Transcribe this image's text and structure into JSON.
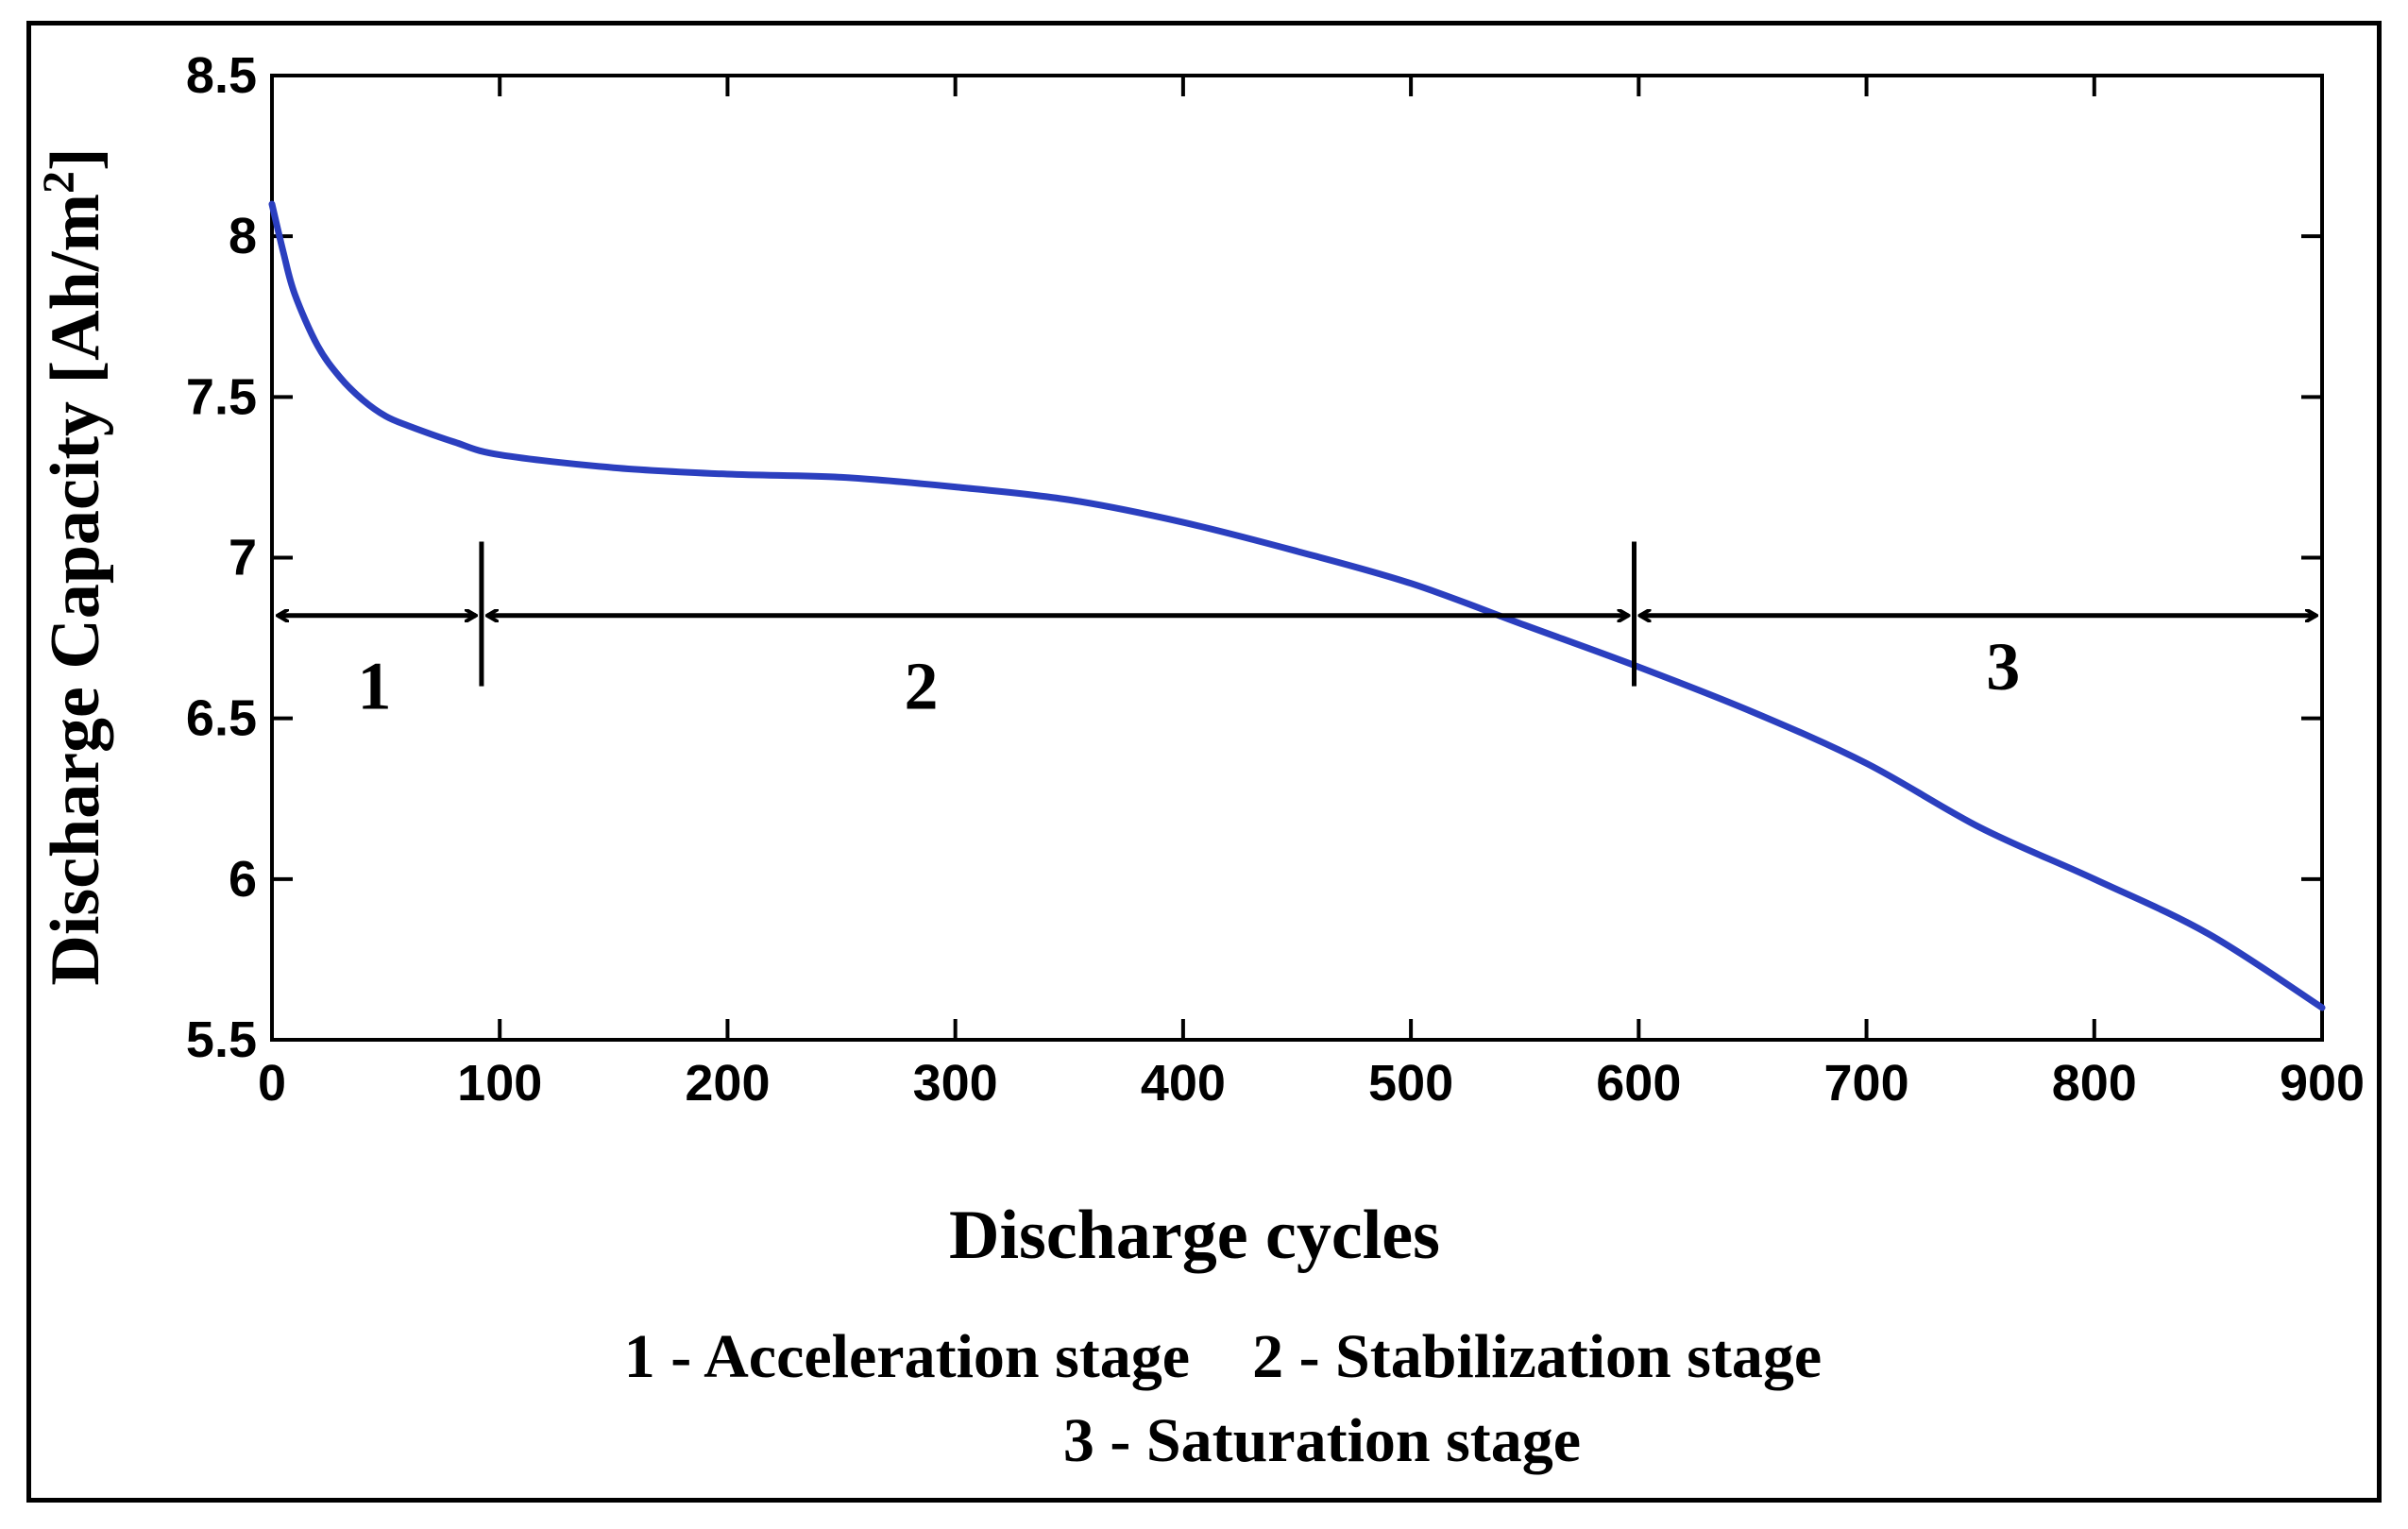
{
  "chart_data": {
    "type": "line",
    "title": "",
    "xlabel": "Discharge cycles",
    "ylabel": "Discharge Capacity [Ah/m",
    "ylabel_superscript": "2",
    "ylabel_close": "]",
    "xlim": [
      0,
      900
    ],
    "ylim": [
      5.5,
      8.5
    ],
    "grid": false,
    "xticks": [
      0,
      100,
      200,
      300,
      400,
      500,
      600,
      700,
      800,
      900
    ],
    "xtick_labels": [
      "0",
      "100",
      "200",
      "300",
      "400",
      "500",
      "600",
      "700",
      "800",
      "900"
    ],
    "yticks": [
      5.5,
      6,
      6.5,
      7,
      7.5,
      8,
      8.5
    ],
    "ytick_labels": [
      "5.5",
      "6",
      "6.5",
      "7",
      "7.5",
      "8",
      "8.5"
    ],
    "series": [
      {
        "name": "Discharge capacity",
        "color": "#2b3fbf",
        "x": [
          0,
          5,
          10,
          20,
          30,
          40,
          50,
          60,
          80,
          100,
          150,
          200,
          250,
          300,
          350,
          400,
          450,
          500,
          550,
          600,
          650,
          700,
          750,
          800,
          850,
          900
        ],
        "y": [
          8.1,
          7.95,
          7.82,
          7.66,
          7.56,
          7.49,
          7.44,
          7.41,
          7.36,
          7.32,
          7.28,
          7.26,
          7.25,
          7.22,
          7.18,
          7.11,
          7.02,
          6.92,
          6.79,
          6.66,
          6.52,
          6.36,
          6.16,
          6.0,
          5.83,
          5.6
        ]
      }
    ],
    "stages": {
      "arrow_y": 6.82,
      "boundaries": [
        0,
        92,
        598,
        900
      ],
      "divider_range": [
        6.6,
        7.05
      ],
      "labels": [
        {
          "text": "1",
          "x": 45,
          "y": 6.53
        },
        {
          "text": "2",
          "x": 285,
          "y": 6.53
        },
        {
          "text": "3",
          "x": 760,
          "y": 6.59
        }
      ]
    },
    "legend_lines": [
      "1 - Acceleration stage    2 - Stabilization stage",
      "3 - Saturation stage"
    ]
  }
}
